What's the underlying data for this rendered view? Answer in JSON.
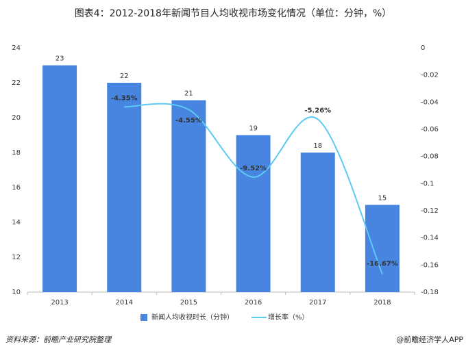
{
  "chart_data": {
    "type": "bar_line",
    "title": "图表4：2012-2018年新闻节目人均收视市场变化情况（单位：分钟，%）",
    "categories": [
      "2013",
      "2014",
      "2015",
      "2016",
      "2017",
      "2018"
    ],
    "series": [
      {
        "name": "新闻人均收视时长（分钟）",
        "type": "bar",
        "color": "#4785e0",
        "values": [
          23,
          22,
          21,
          19,
          18,
          15
        ]
      },
      {
        "name": "增长率（%）",
        "type": "line",
        "axis": "y2",
        "color": "#5ccaf5",
        "smooth": true,
        "values": [
          null,
          -0.0435,
          -0.0455,
          -0.0952,
          -0.0526,
          -0.1667
        ],
        "value_labels": [
          null,
          "-4.35%",
          "-4.55%",
          "-9.52%",
          "-5.26%",
          "-16.67%"
        ]
      }
    ],
    "ylim": [
      10,
      24
    ],
    "yticks": [
      10,
      12,
      14,
      16,
      18,
      20,
      22,
      24
    ],
    "y2lim": [
      -0.18,
      0
    ],
    "y2ticks": [
      -0.18,
      -0.16,
      -0.14,
      -0.12,
      -0.1,
      -0.08,
      -0.06,
      -0.04,
      -0.02,
      0
    ],
    "source": "资料来源：前瞻产业研究院整理",
    "credit": "@前瞻经济学人APP"
  }
}
